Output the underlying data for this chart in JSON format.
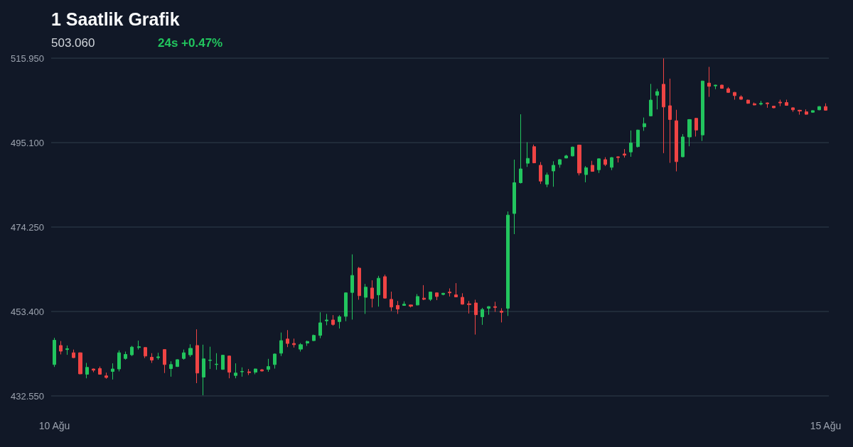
{
  "chart_data": {
    "type": "candlestick",
    "title": "1 Saatlik Grafik",
    "subtitle": "503.060",
    "annotations": [
      "24s +0.47%"
    ],
    "categories": [
      "10 Ağu",
      null,
      null,
      null,
      null,
      null,
      null,
      null,
      null,
      null,
      null,
      null,
      null,
      null,
      null,
      null,
      null,
      null,
      null,
      null,
      null,
      null,
      null,
      null,
      null,
      null,
      null,
      null,
      null,
      null,
      null,
      null,
      null,
      null,
      null,
      null,
      null,
      null,
      null,
      null,
      null,
      null,
      null,
      null,
      null,
      null,
      null,
      null,
      null,
      null,
      null,
      null,
      null,
      null,
      null,
      null,
      null,
      null,
      null,
      null,
      null,
      null,
      null,
      null,
      null,
      null,
      null,
      null,
      null,
      null,
      null,
      null,
      null,
      null,
      null,
      null,
      null,
      null,
      null,
      null,
      null,
      null,
      null,
      null,
      null,
      null,
      null,
      null,
      null,
      null,
      null,
      null,
      null,
      null,
      null,
      null,
      null,
      null,
      null,
      null,
      null,
      null,
      null,
      null,
      null,
      null,
      null,
      null,
      null,
      null,
      null,
      null,
      null,
      null,
      null,
      null,
      null,
      null,
      null,
      "15 Ağu"
    ],
    "ohlc": [
      [
        440.3,
        446.9,
        439.7,
        446.3
      ],
      [
        445.0,
        446.1,
        442.8,
        443.6
      ],
      [
        444.0,
        445.0,
        442.7,
        444.2
      ],
      [
        443.2,
        444.0,
        441.9,
        442.0
      ],
      [
        443.2,
        443.3,
        437.9,
        438.0
      ],
      [
        437.9,
        440.7,
        436.9,
        439.6
      ],
      [
        439.2,
        439.3,
        438.4,
        438.9
      ],
      [
        439.3,
        439.8,
        437.8,
        437.9
      ],
      [
        437.5,
        438.3,
        436.8,
        437.1
      ],
      [
        438.6,
        440.6,
        436.6,
        439.2
      ],
      [
        439.2,
        443.8,
        438.6,
        443.2
      ],
      [
        441.8,
        443.5,
        441.5,
        442.8
      ],
      [
        442.7,
        444.9,
        442.4,
        444.6
      ],
      [
        444.5,
        446.2,
        444.0,
        444.7
      ],
      [
        444.5,
        444.6,
        441.9,
        442.4
      ],
      [
        442.1,
        443.1,
        440.7,
        441.4
      ],
      [
        442.0,
        443.2,
        441.5,
        442.2
      ],
      [
        444.0,
        444.1,
        438.2,
        440.3
      ],
      [
        439.3,
        441.1,
        437.3,
        440.3
      ],
      [
        439.8,
        441.6,
        439.7,
        441.5
      ],
      [
        441.8,
        444.0,
        441.5,
        443.2
      ],
      [
        442.7,
        445.3,
        442.2,
        444.3
      ],
      [
        445.0,
        449.0,
        435.7,
        438.2
      ],
      [
        437.2,
        445.2,
        432.7,
        441.7
      ],
      [
        441.3,
        444.7,
        439.2,
        441.4
      ],
      [
        440.3,
        443.1,
        439.0,
        440.4
      ],
      [
        439.1,
        442.7,
        439.0,
        442.6
      ],
      [
        442.4,
        442.5,
        436.9,
        438.4
      ],
      [
        437.6,
        440.6,
        436.9,
        438.2
      ],
      [
        438.5,
        439.6,
        437.3,
        438.6
      ],
      [
        438.5,
        439.2,
        437.7,
        438.3
      ],
      [
        438.4,
        439.3,
        437.9,
        439.2
      ],
      [
        439.0,
        439.2,
        438.6,
        438.7
      ],
      [
        439.1,
        441.7,
        438.5,
        439.8
      ],
      [
        440.3,
        443.0,
        439.3,
        442.9
      ],
      [
        443.1,
        448.2,
        442.4,
        446.2
      ],
      [
        446.6,
        448.8,
        444.6,
        445.5
      ],
      [
        445.5,
        446.7,
        444.5,
        445.2
      ],
      [
        444.1,
        445.6,
        443.5,
        445.2
      ],
      [
        445.6,
        446.2,
        444.9,
        446.0
      ],
      [
        446.2,
        447.7,
        446.1,
        447.5
      ],
      [
        447.5,
        453.2,
        446.8,
        450.6
      ],
      [
        451.1,
        452.8,
        450.0,
        451.3
      ],
      [
        451.3,
        452.5,
        449.9,
        450.2
      ],
      [
        450.9,
        452.5,
        449.2,
        452.1
      ],
      [
        452.2,
        458.1,
        451.0,
        458.0
      ],
      [
        458.1,
        467.5,
        451.4,
        462.3
      ],
      [
        464.1,
        464.4,
        456.3,
        457.3
      ],
      [
        456.9,
        460.2,
        452.8,
        459.4
      ],
      [
        459.2,
        461.1,
        454.4,
        456.6
      ],
      [
        457.5,
        462.2,
        454.6,
        461.6
      ],
      [
        462.0,
        462.5,
        456.6,
        456.7
      ],
      [
        456.4,
        458.3,
        453.5,
        454.5
      ],
      [
        454.9,
        456.0,
        452.8,
        454.0
      ],
      [
        454.9,
        455.9,
        454.8,
        455.2
      ],
      [
        455.0,
        455.1,
        454.4,
        454.7
      ],
      [
        455.0,
        457.7,
        454.9,
        457.1
      ],
      [
        456.7,
        459.9,
        456.2,
        456.4
      ],
      [
        456.4,
        458.3,
        456.0,
        458.2
      ],
      [
        458.0,
        458.1,
        456.2,
        457.1
      ],
      [
        457.6,
        458.0,
        457.4,
        457.9
      ],
      [
        458.2,
        459.1,
        457.1,
        458.0
      ],
      [
        457.5,
        460.4,
        456.9,
        457.0
      ],
      [
        456.9,
        457.9,
        455.1,
        455.2
      ],
      [
        455.3,
        456.0,
        452.9,
        455.1
      ],
      [
        455.5,
        456.3,
        447.7,
        452.6
      ],
      [
        452.1,
        454.3,
        450.1,
        453.9
      ],
      [
        454.2,
        454.7,
        452.6,
        454.6
      ],
      [
        454.6,
        455.8,
        453.3,
        454.4
      ],
      [
        453.5,
        454.2,
        450.7,
        453.2
      ],
      [
        454.2,
        478.1,
        452.3,
        477.2
      ],
      [
        477.6,
        490.9,
        472.5,
        485.2
      ],
      [
        485.2,
        502.1,
        485.0,
        488.6
      ],
      [
        490.0,
        495.2,
        489.1,
        491.2
      ],
      [
        494.1,
        494.6,
        490.0,
        490.1
      ],
      [
        489.5,
        490.3,
        484.9,
        485.6
      ],
      [
        484.8,
        487.7,
        484.1,
        487.1
      ],
      [
        488.1,
        490.5,
        484.2,
        489.5
      ],
      [
        489.7,
        491.0,
        488.9,
        490.9
      ],
      [
        491.3,
        492.1,
        491.2,
        491.8
      ],
      [
        491.8,
        494.1,
        491.7,
        494.0
      ],
      [
        494.5,
        494.6,
        487.0,
        487.6
      ],
      [
        487.2,
        489.3,
        485.3,
        488.9
      ],
      [
        489.5,
        490.6,
        487.9,
        488.0
      ],
      [
        488.4,
        491.2,
        487.6,
        491.1
      ],
      [
        490.9,
        491.5,
        489.3,
        489.7
      ],
      [
        489.0,
        491.5,
        488.3,
        491.4
      ],
      [
        491.6,
        491.7,
        490.2,
        491.4
      ],
      [
        492.3,
        493.5,
        491.4,
        492.0
      ],
      [
        492.8,
        498.1,
        491.6,
        495.0
      ],
      [
        494.1,
        498.3,
        493.9,
        498.2
      ],
      [
        499.0,
        501.3,
        498.0,
        499.8
      ],
      [
        501.7,
        509.6,
        501.6,
        505.6
      ],
      [
        506.8,
        508.4,
        503.3,
        507.7
      ],
      [
        509.5,
        515.9,
        492.5,
        503.9
      ],
      [
        504.2,
        510.9,
        490.1,
        500.8
      ],
      [
        500.5,
        503.2,
        488.0,
        490.4
      ],
      [
        491.6,
        497.2,
        491.5,
        496.5
      ],
      [
        496.5,
        500.9,
        494.2,
        500.8
      ],
      [
        501.1,
        501.2,
        496.6,
        498.2
      ],
      [
        497.0,
        510.4,
        495.5,
        510.3
      ],
      [
        509.8,
        513.8,
        506.4,
        509.0
      ],
      [
        509.1,
        509.4,
        508.3,
        509.3
      ],
      [
        509.3,
        509.4,
        508.4,
        508.5
      ],
      [
        508.4,
        508.8,
        507.4,
        507.5
      ],
      [
        507.5,
        507.6,
        505.7,
        506.7
      ],
      [
        506.4,
        506.8,
        505.7,
        505.8
      ],
      [
        505.6,
        505.7,
        504.7,
        504.8
      ],
      [
        504.7,
        505.0,
        504.3,
        504.4
      ],
      [
        504.6,
        505.4,
        504.3,
        504.8
      ],
      [
        504.9,
        505.0,
        503.7,
        504.7
      ],
      [
        504.1,
        504.2,
        503.6,
        503.7
      ],
      [
        505.1,
        505.7,
        504.1,
        504.9
      ],
      [
        505.0,
        505.7,
        504.2,
        504.3
      ],
      [
        503.7,
        503.8,
        502.7,
        503.2
      ],
      [
        503.1,
        503.2,
        502.0,
        502.9
      ],
      [
        502.7,
        503.3,
        502.0,
        502.1
      ],
      [
        502.6,
        503.1,
        502.5,
        503.0
      ],
      [
        503.2,
        504.1,
        503.1,
        504.0
      ],
      [
        504.0,
        504.8,
        503.0,
        503.1
      ]
    ],
    "colors": [
      "#22c55e",
      "#ef4444",
      "#22c55e",
      "#ef4444",
      "#ef4444",
      "#22c55e",
      "#ef4444",
      "#ef4444",
      "#ef4444",
      "#22c55e",
      "#22c55e",
      "#22c55e",
      "#22c55e",
      "#22c55e",
      "#ef4444",
      "#ef4444",
      "#22c55e",
      "#ef4444",
      "#22c55e",
      "#22c55e",
      "#22c55e",
      "#22c55e",
      "#ef4444",
      "#22c55e",
      "#22c55e",
      "#22c55e",
      "#22c55e",
      "#ef4444",
      "#22c55e",
      "#22c55e",
      "#ef4444",
      "#22c55e",
      "#ef4444",
      "#22c55e",
      "#22c55e",
      "#22c55e",
      "#ef4444",
      "#ef4444",
      "#22c55e",
      "#22c55e",
      "#22c55e",
      "#22c55e",
      "#22c55e",
      "#ef4444",
      "#22c55e",
      "#22c55e",
      "#22c55e",
      "#ef4444",
      "#22c55e",
      "#ef4444",
      "#22c55e",
      "#ef4444",
      "#ef4444",
      "#ef4444",
      "#22c55e",
      "#ef4444",
      "#22c55e",
      "#ef4444",
      "#22c55e",
      "#ef4444",
      "#22c55e",
      "#ef4444",
      "#ef4444",
      "#ef4444",
      "#ef4444",
      "#ef4444",
      "#22c55e",
      "#22c55e",
      "#ef4444",
      "#ef4444",
      "#22c55e",
      "#22c55e",
      "#22c55e",
      "#22c55e",
      "#ef4444",
      "#ef4444",
      "#22c55e",
      "#22c55e",
      "#22c55e",
      "#22c55e",
      "#22c55e",
      "#ef4444",
      "#22c55e",
      "#ef4444",
      "#22c55e",
      "#ef4444",
      "#22c55e",
      "#ef4444",
      "#ef4444",
      "#22c55e",
      "#22c55e",
      "#22c55e",
      "#22c55e",
      "#22c55e",
      "#ef4444",
      "#ef4444",
      "#ef4444",
      "#22c55e",
      "#22c55e",
      "#ef4444",
      "#22c55e",
      "#ef4444",
      "#22c55e",
      "#ef4444",
      "#ef4444",
      "#ef4444",
      "#ef4444",
      "#ef4444",
      "#ef4444",
      "#22c55e",
      "#ef4444",
      "#ef4444",
      "#ef4444",
      "#ef4444",
      "#ef4444",
      "#ef4444",
      "#ef4444",
      "#22c55e",
      "#22c55e",
      "#ef4444"
    ],
    "ylim": [
      432.55,
      515.95
    ],
    "yticks": [
      {
        "value": 432.55,
        "label": "432.550"
      },
      {
        "value": 453.4,
        "label": "453.400"
      },
      {
        "value": 474.25,
        "label": "474.250"
      },
      {
        "value": 495.1,
        "label": "495.100"
      },
      {
        "value": 515.95,
        "label": "515.950"
      }
    ],
    "grid": "y"
  }
}
